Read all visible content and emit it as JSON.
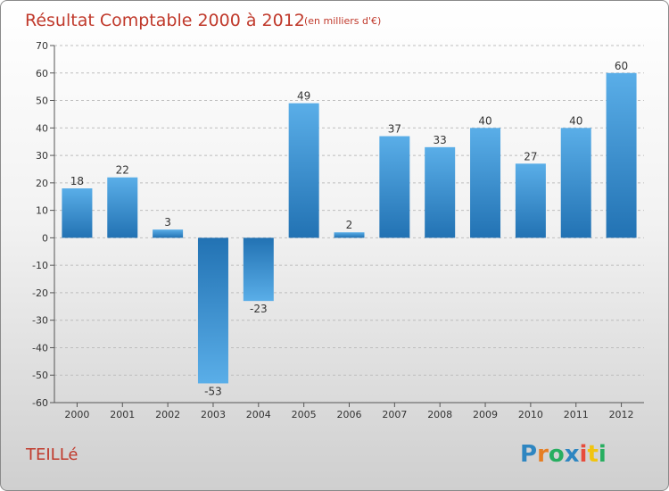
{
  "chart_data": {
    "type": "bar",
    "title": "Résultat Comptable 2000 à 2012",
    "subtitle": "(en milliers d'€)",
    "categories": [
      "2000",
      "2001",
      "2002",
      "2003",
      "2004",
      "2005",
      "2006",
      "2007",
      "2008",
      "2009",
      "2010",
      "2011",
      "2012"
    ],
    "values": [
      18,
      22,
      3,
      -53,
      -23,
      49,
      2,
      37,
      33,
      40,
      27,
      40,
      60
    ],
    "ylim": [
      -60,
      70
    ],
    "yticks": [
      70,
      60,
      50,
      40,
      30,
      20,
      10,
      0,
      -10,
      -20,
      -30,
      -40,
      -50,
      -60
    ],
    "grid": true,
    "xlabel": "",
    "ylabel": ""
  },
  "footer": {
    "place_name": "TEILLé",
    "brand_letters": [
      "P",
      "r",
      "o",
      "x",
      "i",
      "t",
      "i"
    ]
  },
  "colors": {
    "title": "#c0392b",
    "bar_light": "#5aaee8",
    "bar_dark": "#2272b3",
    "grid": "#bdbdbd",
    "axis": "#555555",
    "brand": [
      "#2e86c1",
      "#e67e22",
      "#27ae60",
      "#2e86c1",
      "#e74c3c",
      "#f1c40f",
      "#27ae60"
    ]
  }
}
